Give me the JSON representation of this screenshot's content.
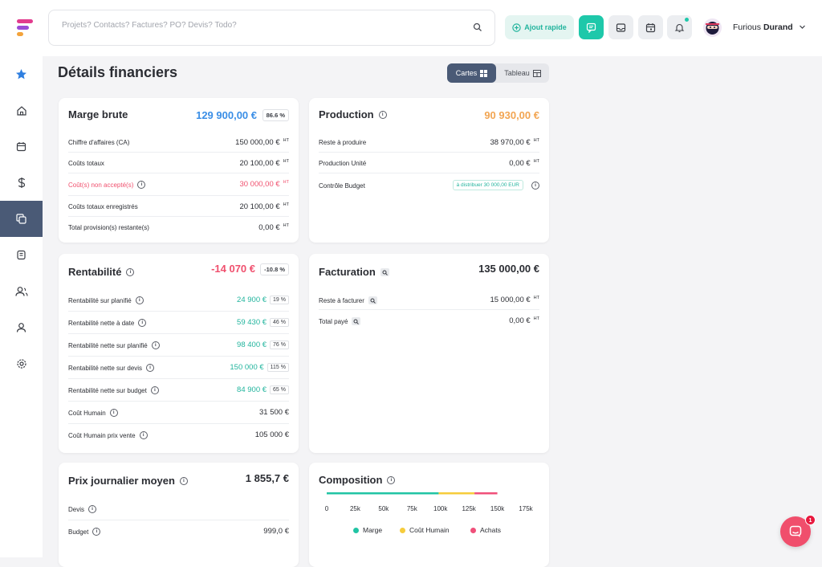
{
  "search": {
    "placeholder": "Projets? Contacts? Factures? PO? Devis? Todo?"
  },
  "topbar": {
    "quick_add": "Ajout rapide",
    "user_first": "Furious",
    "user_last": "Durand"
  },
  "page": {
    "title": "Détails financiers",
    "view_cards": "Cartes",
    "view_table": "Tableau"
  },
  "ht": "HT",
  "marge": {
    "title": "Marge brute",
    "value": "129 900,00 €",
    "pct": "86.6 %",
    "rows": [
      {
        "label": "Chiffre d'affaires (CA)",
        "value": "150 000,00 €"
      },
      {
        "label": "Coûts totaux",
        "value": "20 100,00 €"
      },
      {
        "label": "Coût(s) non accepté(s)",
        "value": "30 000,00 €"
      },
      {
        "label": "Coûts totaux enregistrés",
        "value": "20 100,00 €"
      },
      {
        "label": "Total provision(s) restante(s)",
        "value": "0,00 €"
      }
    ]
  },
  "production": {
    "title": "Production",
    "value": "90 930,00 €",
    "rows": [
      {
        "label": "Reste à produire",
        "value": "38 970,00 €"
      },
      {
        "label": "Production Unité",
        "value": "0,00 €"
      },
      {
        "label": "Contrôle Budget",
        "badge": "à distribuer 30 000,00 EUR"
      }
    ]
  },
  "rentabilite": {
    "title": "Rentabilité",
    "value": "-14 070 €",
    "pct": "-10.8 %",
    "rows": [
      {
        "label": "Rentabilité sur planifié",
        "value": "24 900 €",
        "pct": "19 %"
      },
      {
        "label": "Rentabilité nette à date",
        "value": "59 430 €",
        "pct": "46 %"
      },
      {
        "label": "Rentabilité nette sur planifié",
        "value": "98 400 €",
        "pct": "76 %"
      },
      {
        "label": "Rentabilité nette sur devis",
        "value": "150 000 €",
        "pct": "115 %"
      },
      {
        "label": "Rentabilité nette sur budget",
        "value": "84 900 €",
        "pct": "65 %"
      },
      {
        "label": "Coût Humain",
        "value": "31 500 €"
      },
      {
        "label": "Coût Humain prix vente",
        "value": "105 000 €"
      }
    ]
  },
  "facturation": {
    "title": "Facturation",
    "value": "135 000,00 €",
    "rows": [
      {
        "label": "Reste à facturer",
        "value": "15 000,00 €"
      },
      {
        "label": "Total payé",
        "value": "0,00 €"
      }
    ]
  },
  "pjm": {
    "title": "Prix journalier moyen",
    "value": "1 855,7 €",
    "rows": [
      {
        "label": "Devis",
        "value": ""
      },
      {
        "label": "Budget",
        "value": "999,0 €"
      }
    ]
  },
  "composition": {
    "title": "Composition",
    "ticks": [
      "0",
      "25k",
      "50k",
      "75k",
      "100k",
      "125k",
      "150k",
      "175k"
    ],
    "legend": [
      "Marge",
      "Coût Humain",
      "Achats"
    ]
  },
  "colors": {
    "accent": "#1ec8aa",
    "sidebar_active": "#4a5a76",
    "marge": "#21c4a4",
    "cout_humain": "#f6cc3c",
    "achats": "#f0507a"
  },
  "chart_data": {
    "type": "bar",
    "orientation": "horizontal",
    "stacked": true,
    "title": "Composition",
    "xlim": [
      0,
      175000
    ],
    "ticks": [
      "0",
      "25k",
      "50k",
      "75k",
      "100k",
      "125k",
      "150k",
      "175k"
    ],
    "series": [
      {
        "name": "Marge",
        "values": [
          98400
        ]
      },
      {
        "name": "Coût Humain",
        "values": [
          31500
        ]
      },
      {
        "name": "Achats",
        "values": [
          20100
        ]
      }
    ]
  },
  "fab": {
    "badge": "1"
  }
}
